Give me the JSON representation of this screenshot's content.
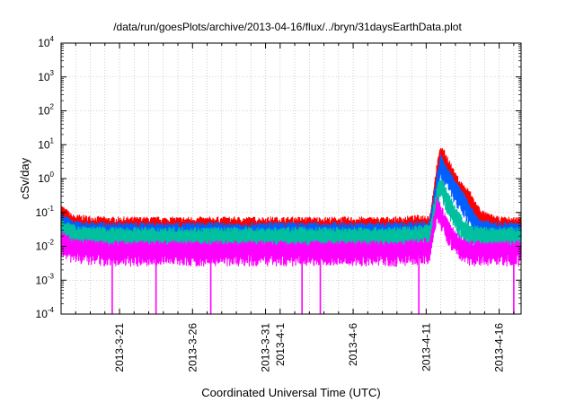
{
  "chart_data": {
    "type": "line",
    "title": "/data/run/goesPlots/archive/2013-04-16/flux/../bryn/31daysEarthData.plot",
    "xlabel": "Coordinated Universal Time (UTC)",
    "ylabel": "cSv/day",
    "y_scale": "log",
    "ylim": [
      0.0001,
      10000
    ],
    "y_ticks": [
      {
        "value": 0.0001,
        "base": "10",
        "exp": "-4"
      },
      {
        "value": 0.001,
        "base": "10",
        "exp": "-3"
      },
      {
        "value": 0.01,
        "base": "10",
        "exp": "-2"
      },
      {
        "value": 0.1,
        "base": "10",
        "exp": "-1"
      },
      {
        "value": 1,
        "base": "10",
        "exp": "0"
      },
      {
        "value": 10,
        "base": "10",
        "exp": "1"
      },
      {
        "value": 100,
        "base": "10",
        "exp": "2"
      },
      {
        "value": 1000,
        "base": "10",
        "exp": "3"
      },
      {
        "value": 10000,
        "base": "10",
        "exp": "4"
      }
    ],
    "xlim": [
      "2013-03-17",
      "2013-04-17 12:00"
    ],
    "x_ticks": [
      {
        "date": "2013-03-21",
        "label": "2013-3-21"
      },
      {
        "date": "2013-03-26",
        "label": "2013-3-26"
      },
      {
        "date": "2013-03-31",
        "label": "2013-3-31"
      },
      {
        "date": "2013-04-01",
        "label": "2013-4-1"
      },
      {
        "date": "2013-04-06",
        "label": "2013-4-6"
      },
      {
        "date": "2013-04-11",
        "label": "2013-4-11"
      },
      {
        "date": "2013-04-16",
        "label": "2013-4-16"
      }
    ],
    "grid": true,
    "legend": "none",
    "series": [
      {
        "color": "#ff0000",
        "points": [
          [
            "2013-03-17",
            0.12
          ],
          [
            "2013-03-17 18:00",
            0.06
          ],
          [
            "2013-03-20",
            0.05
          ],
          [
            "2013-03-25",
            0.05
          ],
          [
            "2013-03-30",
            0.05
          ],
          [
            "2013-04-04",
            0.05
          ],
          [
            "2013-04-09",
            0.05
          ],
          [
            "2013-04-11 06:00",
            0.06
          ],
          [
            "2013-04-11 18:00",
            2.0
          ],
          [
            "2013-04-12",
            7.0
          ],
          [
            "2013-04-12 12:00",
            3.0
          ],
          [
            "2013-04-13",
            1.0
          ],
          [
            "2013-04-13 12:00",
            0.5
          ],
          [
            "2013-04-14",
            0.3
          ],
          [
            "2013-04-14 12:00",
            0.12
          ],
          [
            "2013-04-15",
            0.07
          ],
          [
            "2013-04-16",
            0.05
          ],
          [
            "2013-04-17 12:00",
            0.05
          ]
        ]
      },
      {
        "color": "#0060ff",
        "points": [
          [
            "2013-03-17",
            0.08
          ],
          [
            "2013-03-17 18:00",
            0.04
          ],
          [
            "2013-03-20",
            0.035
          ],
          [
            "2013-03-25",
            0.035
          ],
          [
            "2013-03-30",
            0.035
          ],
          [
            "2013-04-04",
            0.035
          ],
          [
            "2013-04-09",
            0.035
          ],
          [
            "2013-04-11 06:00",
            0.04
          ],
          [
            "2013-04-11 18:00",
            1.0
          ],
          [
            "2013-04-12",
            3.5
          ],
          [
            "2013-04-12 12:00",
            1.5
          ],
          [
            "2013-04-13",
            0.6
          ],
          [
            "2013-04-13 12:00",
            0.3
          ],
          [
            "2013-04-14",
            0.12
          ],
          [
            "2013-04-14 12:00",
            0.05
          ],
          [
            "2013-04-15",
            0.04
          ],
          [
            "2013-04-16",
            0.035
          ],
          [
            "2013-04-17 12:00",
            0.035
          ]
        ]
      },
      {
        "color": "#00c0a0",
        "points": [
          [
            "2013-03-17",
            0.05
          ],
          [
            "2013-03-17 18:00",
            0.03
          ],
          [
            "2013-03-20",
            0.025
          ],
          [
            "2013-03-25",
            0.025
          ],
          [
            "2013-03-30",
            0.025
          ],
          [
            "2013-04-04",
            0.025
          ],
          [
            "2013-04-09",
            0.025
          ],
          [
            "2013-04-11 06:00",
            0.03
          ],
          [
            "2013-04-11 18:00",
            0.4
          ],
          [
            "2013-04-12",
            0.8
          ],
          [
            "2013-04-12 12:00",
            0.3
          ],
          [
            "2013-04-13",
            0.1
          ],
          [
            "2013-04-13 12:00",
            0.05
          ],
          [
            "2013-04-14",
            0.03
          ],
          [
            "2013-04-15",
            0.025
          ],
          [
            "2013-04-16",
            0.025
          ],
          [
            "2013-04-17 12:00",
            0.025
          ]
        ]
      },
      {
        "color": "#ff00ff",
        "points": [
          [
            "2013-03-17",
            0.02
          ],
          [
            "2013-03-17 18:00",
            0.012
          ],
          [
            "2013-03-20",
            0.01
          ],
          [
            "2013-03-25",
            0.01
          ],
          [
            "2013-03-30",
            0.01
          ],
          [
            "2013-04-04",
            0.01
          ],
          [
            "2013-04-09",
            0.01
          ],
          [
            "2013-04-11 06:00",
            0.012
          ],
          [
            "2013-04-11 18:00",
            0.2
          ],
          [
            "2013-04-12",
            0.12
          ],
          [
            "2013-04-12 12:00",
            0.04
          ],
          [
            "2013-04-13",
            0.02
          ],
          [
            "2013-04-13 12:00",
            0.012
          ],
          [
            "2013-04-14",
            0.01
          ],
          [
            "2013-04-16",
            0.01
          ],
          [
            "2013-04-17 12:00",
            0.01
          ]
        ]
      }
    ],
    "dropouts": [
      {
        "date": "2013-03-20 12:00",
        "value": 0.0001
      },
      {
        "date": "2013-03-23 12:00",
        "value": 0.0001
      },
      {
        "date": "2013-03-27 06:00",
        "value": 0.0001
      },
      {
        "date": "2013-04-02 12:00",
        "value": 0.0001
      },
      {
        "date": "2013-04-03 18:00",
        "value": 0.0001
      },
      {
        "date": "2013-04-10 12:00",
        "value": 0.0001
      },
      {
        "date": "2013-04-17",
        "value": 0.0001
      }
    ]
  }
}
